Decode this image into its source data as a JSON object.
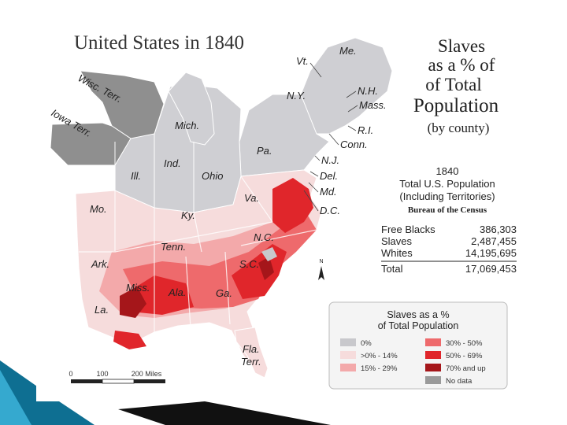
{
  "map": {
    "title": "United States in 1840",
    "subtitle_lines": [
      "Slaves",
      "as a % of",
      "of Total",
      "Population"
    ],
    "subtitle_by": "(by county)",
    "scale": {
      "ticks": [
        "0",
        "100",
        "200 Miles"
      ]
    },
    "north": "N",
    "labels": {
      "me": "Me.",
      "vt": "Vt.",
      "nh": "N.H.",
      "mass": "Mass.",
      "ny": "N.Y.",
      "ri": "R.I.",
      "conn": "Conn.",
      "pa": "Pa.",
      "nj": "N.J.",
      "del": "Del.",
      "md": "Md.",
      "dc": "D.C.",
      "va": "Va.",
      "nc": "N.C.",
      "sc": "S.C.",
      "ga": "Ga.",
      "fla": "Fla.\nTerr.",
      "ala": "Ala.",
      "miss": "Miss.",
      "la": "La.",
      "ark": "Ark.",
      "tenn": "Tenn.",
      "ky": "Ky.",
      "mo": "Mo.",
      "ill": "Ill.",
      "ind": "Ind.",
      "ohio": "Ohio",
      "mich": "Mich.",
      "wisc": "Wisc. Terr.",
      "iowa": "Iowa Terr.",
      "fla_line1": "Fla.",
      "fla_line2": "Terr."
    }
  },
  "census": {
    "year": "1840",
    "line1": "Total U.S. Population",
    "line2": "(Including Territories)",
    "line3": "Bureau of the Census",
    "rows": [
      {
        "label": "Free Blacks",
        "value": "386,303"
      },
      {
        "label": "Slaves",
        "value": "2,487,455"
      },
      {
        "label": "Whites",
        "value": "14,195,695"
      }
    ],
    "total": {
      "label": "Total",
      "value": "17,069,453"
    }
  },
  "legend": {
    "title_line1": "Slaves as a %",
    "title_line2": "of Total Population",
    "items": [
      {
        "label": "0%",
        "color": "#c8c8cc"
      },
      {
        "label": ">0% - 14%",
        "color": "#f6dcdc"
      },
      {
        "label": "15% - 29%",
        "color": "#f3a9aa"
      },
      {
        "label": "30% - 50%",
        "color": "#ee6a6c"
      },
      {
        "label": "50% - 69%",
        "color": "#e0262b"
      },
      {
        "label": "70% and up",
        "color": "#a5161a"
      },
      {
        "label": "No data",
        "color": "#9a9a9a"
      }
    ]
  },
  "colors": {
    "free": "#d2d2d6",
    "zero": "#c8c8cc",
    "nodata": "#8f8f8f",
    "low": "#f6dcdc",
    "mid": "#f3a9aa",
    "high": "#ee6a6c",
    "higher": "#e0262b",
    "top": "#a5161a",
    "accent": "#1b7aa6"
  }
}
